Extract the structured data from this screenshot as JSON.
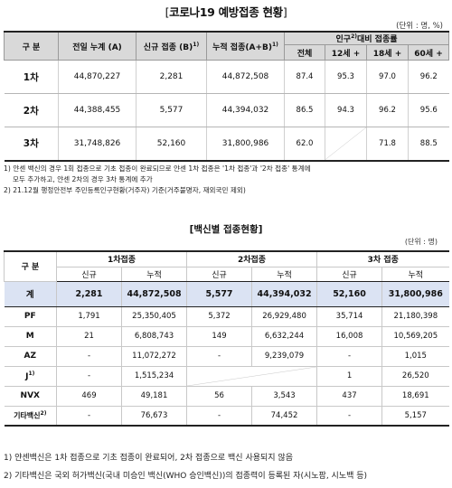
{
  "doc": {
    "title_prefix": "[",
    "title_main": "코로나19 예방접종 현황",
    "title_suffix": "]",
    "unit": "(단위 : 명, %)"
  },
  "table1": {
    "headers": {
      "gubun": "구 분",
      "prev_total": "전일 누계 (A)",
      "new": "신규 접종 (B)",
      "new_sup": "1)",
      "cum": "누적 접종(A+B)",
      "cum_sup": "1)",
      "ratio": "인구",
      "ratio_sup": "2)",
      "ratio_rest": "대비 접종률",
      "all": "전체",
      "age12": "12세 +",
      "age18": "18세 +",
      "age60": "60세 +"
    },
    "rows": [
      {
        "label": "1차",
        "prev": "44,870,227",
        "new": "2,281",
        "cum": "44,872,508",
        "all": "87.4",
        "a12": "95.3",
        "a18": "97.0",
        "a60": "96.2"
      },
      {
        "label": "2차",
        "prev": "44,388,455",
        "new": "5,577",
        "cum": "44,394,032",
        "all": "86.5",
        "a12": "94.3",
        "a18": "96.2",
        "a60": "95.6"
      },
      {
        "label": "3차",
        "prev": "31,748,826",
        "new": "52,160",
        "cum": "31,800,986",
        "all": "62.0",
        "a12": "",
        "a18": "71.8",
        "a60": "88.5"
      }
    ]
  },
  "notes1": {
    "n1_line1": "1)  얀센 백신의 경우 1회 접종으로 기초 접종이 완료되므로 얀센 1차 접종은 '1차 접종'과 '2차 접종' 통계에",
    "n1_line2": "모두 추가하고, 얀센 2차의 경우 3차 통계에 추가",
    "n2": "2)  21.12월 행정안전부 주민등록인구현황(거주자) 기준(거주불명자, 재외국민 제외)"
  },
  "section2": {
    "title": "[백신별 접종현황]",
    "unit": "(단위 : 명)"
  },
  "table2": {
    "headers": {
      "gubun": "구 분",
      "g1": "1차접종",
      "g2": "2차접종",
      "g3": "3차 접종",
      "new": "신규",
      "cum": "누적"
    },
    "total": {
      "label": "계",
      "v": [
        "2,281",
        "44,872,508",
        "5,577",
        "44,394,032",
        "52,160",
        "31,800,986"
      ]
    },
    "rows": [
      {
        "label": "PF",
        "sup": "",
        "v": [
          "1,791",
          "25,350,405",
          "5,372",
          "26,929,480",
          "35,714",
          "21,180,398"
        ]
      },
      {
        "label": "M",
        "sup": "",
        "v": [
          "21",
          "6,808,743",
          "149",
          "6,632,244",
          "16,008",
          "10,569,205"
        ]
      },
      {
        "label": "AZ",
        "sup": "",
        "v": [
          "-",
          "11,072,272",
          "-",
          "9,239,079",
          "-",
          "1,015"
        ]
      },
      {
        "label": "J",
        "sup": "1)",
        "v": [
          "-",
          "1,515,234",
          "",
          "",
          "1",
          "26,520"
        ]
      },
      {
        "label": "NVX",
        "sup": "",
        "v": [
          "469",
          "49,181",
          "56",
          "3,543",
          "437",
          "18,691"
        ]
      },
      {
        "label": "기타백신",
        "sup": "2)",
        "v": [
          "-",
          "76,673",
          "-",
          "74,452",
          "-",
          "5,157"
        ]
      }
    ]
  },
  "notes2": {
    "n1": "1) 얀센백신은 1차 접종으로 기초 접종이 완료되어, 2차 접종으로 백신 사용되지 않음",
    "n2": "2) 기타백신은 국외 허가백신(국내 미승인 백신(WHO 승인백신))의 접종력이 등록된 자(시노팜, 시노백 등)"
  }
}
